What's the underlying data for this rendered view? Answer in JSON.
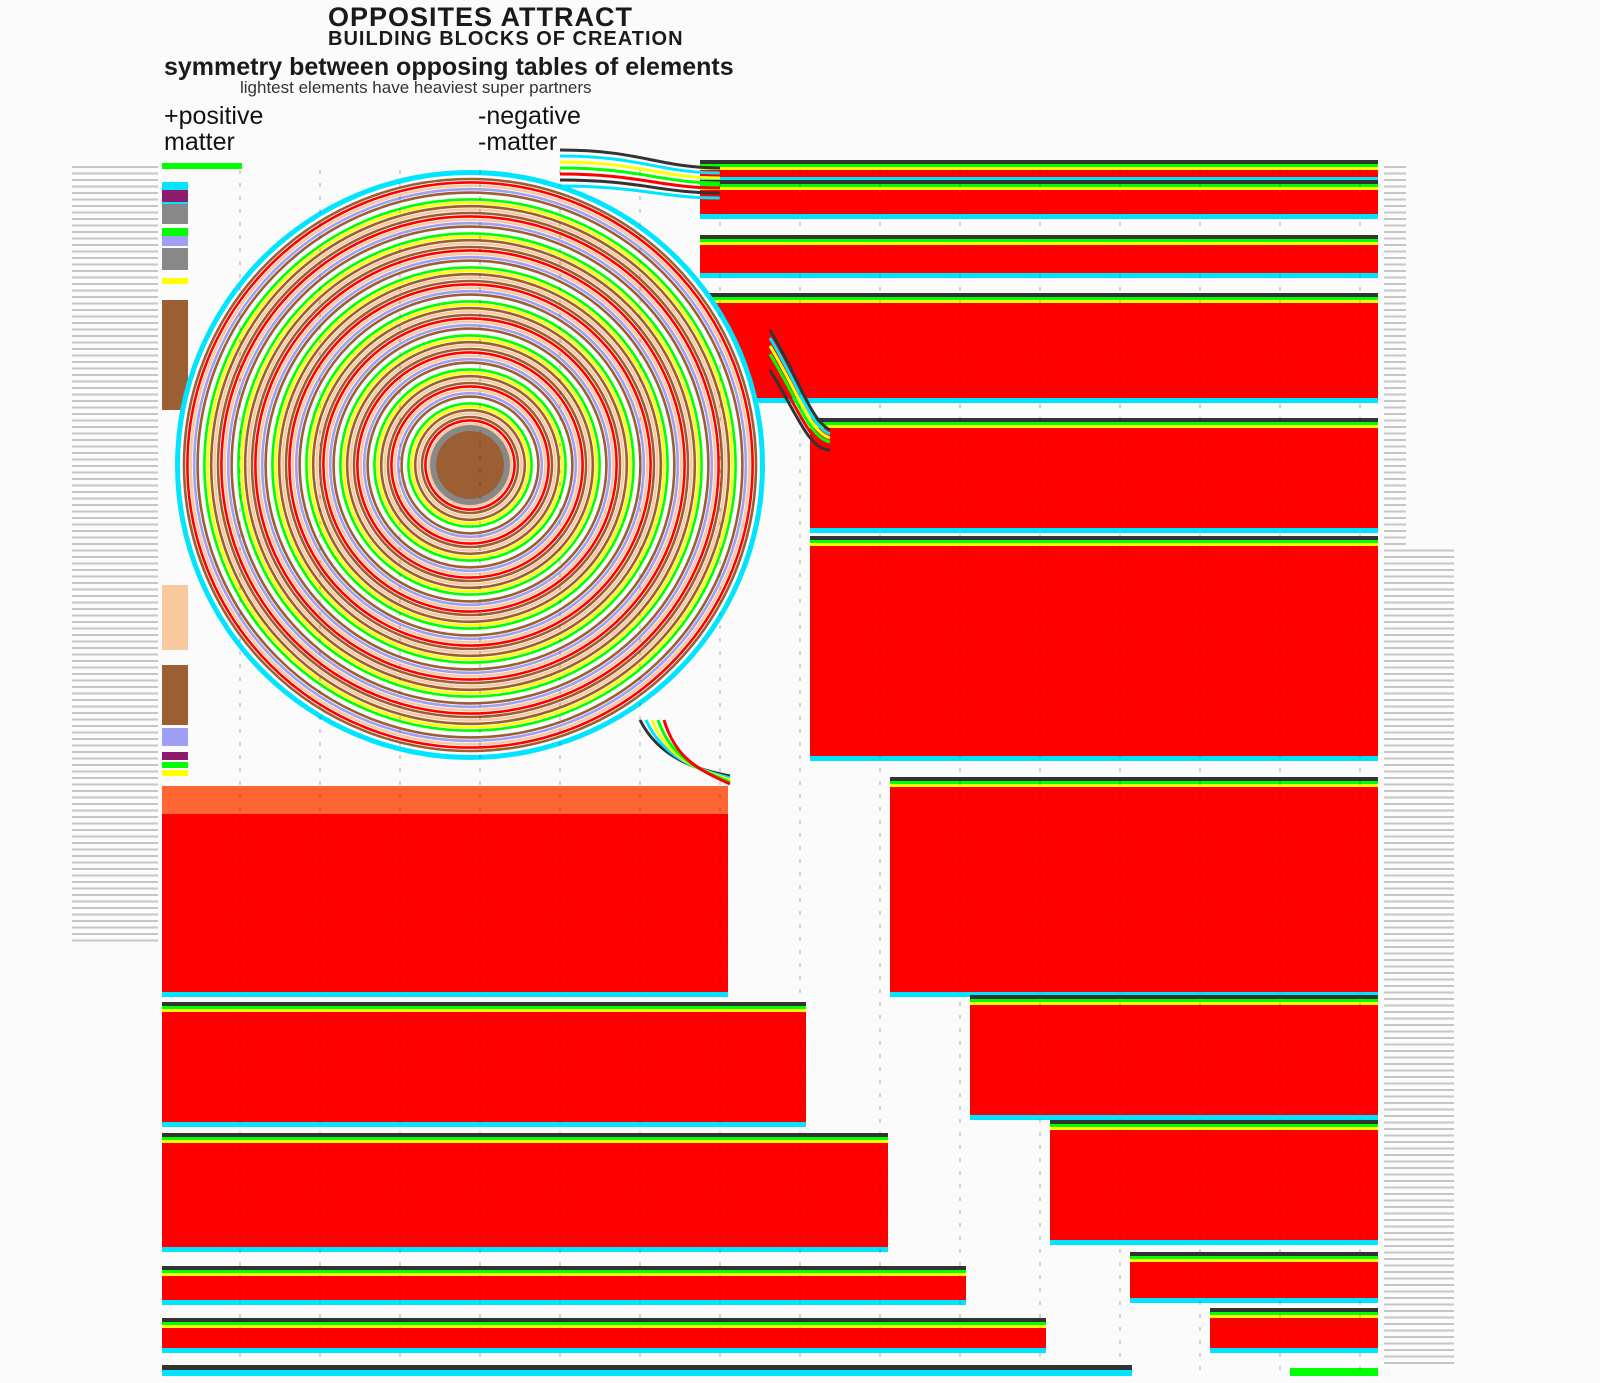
{
  "header": {
    "title": "OPPOSITES ATTRACT",
    "subtitle": "BUILDING BLOCKS OF CREATION",
    "heading": "symmetry between opposing tables of elements",
    "subheading": "lightest elements have heaviest super partners"
  },
  "labels": {
    "positive_top": "+positive",
    "positive_bottom": "matter",
    "negative_top": "-negative",
    "negative_bottom": "-matter"
  },
  "colors": {
    "red": "#ff0000",
    "cyan": "#00e5ff",
    "yellow": "#ffff00",
    "green": "#00ff00",
    "dark": "#333333",
    "brown": "#9c5f33",
    "peach": "#f9c9a0",
    "lavender": "#9f9ff5",
    "orange": "#ff6633",
    "gray": "#888888",
    "purple": "#8e1b6b",
    "background": "#fbfbfb"
  }
}
